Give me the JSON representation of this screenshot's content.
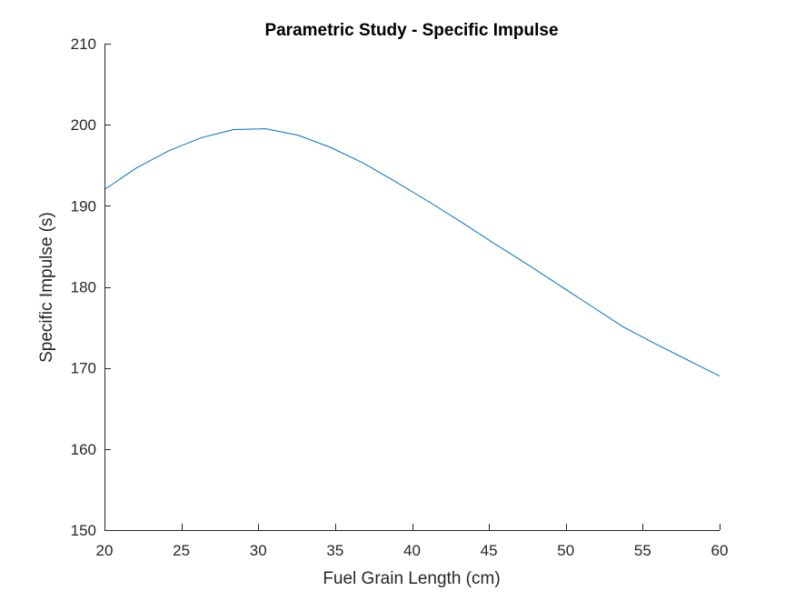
{
  "chart_data": {
    "type": "line",
    "title": "Parametric Study - Specific Impulse",
    "xlabel": "Fuel Grain Length (cm)",
    "ylabel": "Specific Impulse (s)",
    "xlim": [
      20,
      60
    ],
    "ylim": [
      150,
      210
    ],
    "xticks": [
      20,
      25,
      30,
      35,
      40,
      45,
      50,
      55,
      60
    ],
    "yticks": [
      150,
      160,
      170,
      180,
      190,
      200,
      210
    ],
    "xtick_labels": [
      "20",
      "25",
      "30",
      "35",
      "40",
      "45",
      "50",
      "55",
      "60"
    ],
    "ytick_labels": [
      "150",
      "160",
      "170",
      "180",
      "190",
      "200",
      "210"
    ],
    "grid": false,
    "box": false,
    "series": [
      {
        "color": "#0072bd",
        "x": [
          20.0,
          22.1,
          24.2,
          26.3,
          28.4,
          30.5,
          32.6,
          34.7,
          36.8,
          38.9,
          41.1,
          43.2,
          45.3,
          47.4,
          49.5,
          51.6,
          53.7,
          55.8,
          57.9,
          60.0
        ],
        "y": [
          192.0,
          194.7,
          196.8,
          198.4,
          199.4,
          199.5,
          198.7,
          197.2,
          195.3,
          193.0,
          190.5,
          188.0,
          185.4,
          182.9,
          180.3,
          177.7,
          175.1,
          173.0,
          171.0,
          169.0
        ]
      }
    ]
  }
}
